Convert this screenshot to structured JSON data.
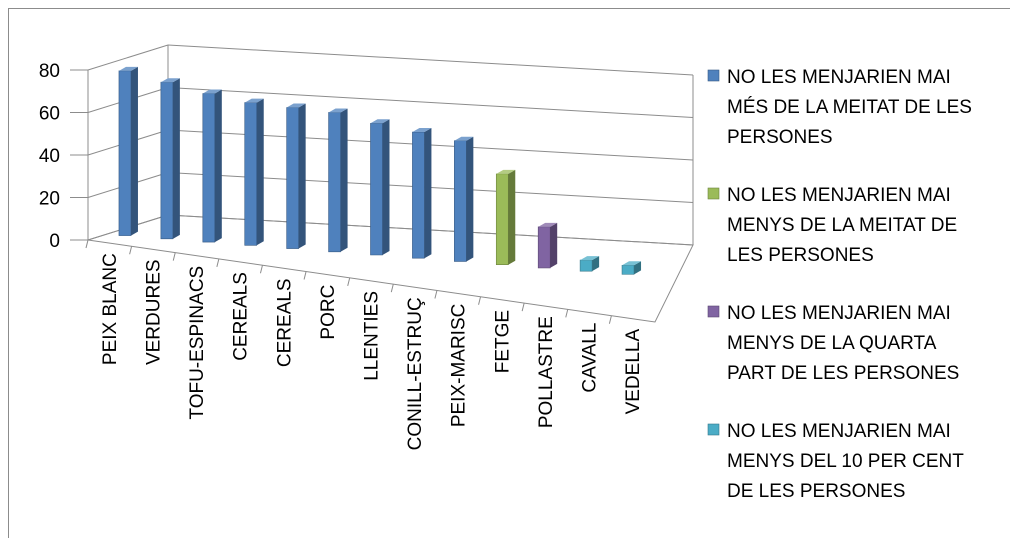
{
  "chart_data": {
    "type": "bar",
    "title": "",
    "xlabel": "",
    "ylabel": "",
    "ylim": [
      0,
      80
    ],
    "yticks": [
      "80",
      "60",
      "40",
      "20",
      "0"
    ],
    "categories": [
      "PEIX BLANC",
      "VERDURES",
      "TOFU-ESPINACS",
      "CEREALS",
      "CEREALS",
      "PORC",
      "LLENTIES",
      "CONILL-ESTRUÇ",
      "PEIX-MARISC",
      "FETGE",
      "POLLASTRE",
      "CAVALL",
      "VEDELLA"
    ],
    "series": [
      {
        "name": "NO LES MENJARIEN MAI MÉS DE LA MEITAT DE LES PERSONES",
        "color": "#4f81bd",
        "values": [
          78,
          75,
          72,
          70,
          70,
          70,
          67,
          65,
          63,
          null,
          null,
          null,
          null
        ]
      },
      {
        "name": "NO LES MENJARIEN MAI MENYS DE LA MEITAT DE LES PERSONES",
        "color": "#9bbb59",
        "values": [
          null,
          null,
          null,
          null,
          null,
          null,
          null,
          null,
          null,
          48,
          null,
          null,
          null
        ]
      },
      {
        "name": "NO LES MENJARIEN  MAI MENYS DE LA QUARTA PART DE LES PERSONES",
        "color": "#8064a2",
        "values": [
          null,
          null,
          null,
          null,
          null,
          null,
          null,
          null,
          null,
          null,
          22,
          null,
          null
        ]
      },
      {
        "name": "NO LES MENJARIEN MAI MENYS DEL 10 PER CENT DE LES PERSONES",
        "color": "#4bacc6",
        "values": [
          null,
          null,
          null,
          null,
          null,
          null,
          null,
          null,
          null,
          null,
          null,
          6,
          5
        ]
      }
    ],
    "legend_position": "right",
    "grid": true
  },
  "legend": {
    "items": [
      {
        "lines": [
          "NO LES MENJARIEN MAI",
          "MÉS DE LA MEITAT DE LES",
          "PERSONES"
        ]
      },
      {
        "lines": [
          "NO LES MENJARIEN MAI",
          "MENYS DE LA MEITAT DE",
          "LES PERSONES"
        ]
      },
      {
        "lines": [
          "NO LES MENJARIEN  MAI",
          "MENYS DE LA QUARTA",
          "PART DE LES PERSONES"
        ]
      },
      {
        "lines": [
          "NO LES MENJARIEN MAI",
          "MENYS DEL 10 PER CENT",
          "DE LES PERSONES"
        ]
      }
    ]
  }
}
